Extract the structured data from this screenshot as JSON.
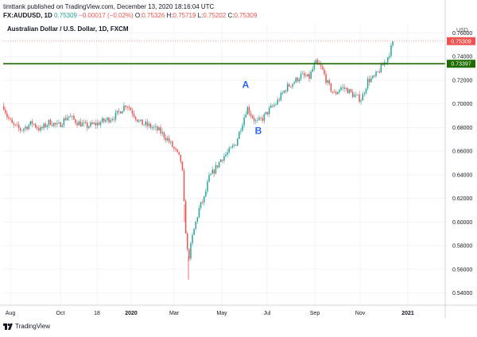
{
  "header": {
    "publisher": "timttank published on TradingView.com, December 13, 2020 18:16:04 UTC",
    "symbol": "FX:AUDUSD, 1D",
    "last": "0.75309",
    "change": "−0.00017 (−0.02%)",
    "o_label": "O:",
    "o_value": "0.75326",
    "h_label": "H:",
    "h_value": "0.75719",
    "l_label": "L:",
    "l_value": "0.75202",
    "c_label": "C:",
    "c_value": "0.75309"
  },
  "footer": {
    "brand": "TradingView",
    "brand_icon": "tradingview-logo-icon"
  },
  "chart_data": {
    "type": "candlestick",
    "title": "Australian Dollar / U.S. Dollar, 1D, FXCM",
    "y_unit": "USD",
    "ylim": [
      0.53,
      0.77
    ],
    "y_ticks": [
      "0.76000",
      "0.74000",
      "0.72000",
      "0.70000",
      "0.68000",
      "0.66000",
      "0.64000",
      "0.62000",
      "0.60000",
      "0.58000",
      "0.56000",
      "0.54000"
    ],
    "x_ticks": [
      "Aug",
      "Oct",
      "18",
      "2020",
      "Mar",
      "May",
      "Jul",
      "Sep",
      "Nov",
      "2021"
    ],
    "price_label": {
      "text": "0.75309",
      "value": 0.75309,
      "color": "#ef5350"
    },
    "horizontal_line": {
      "value": 0.73397,
      "label": "0.73397",
      "color": "#1e6b00"
    },
    "annotations": [
      {
        "text": "A",
        "x": "May",
        "value": 0.7135,
        "color": "#2962ff"
      },
      {
        "text": "B",
        "x": "May",
        "value": 0.6745,
        "color": "#2962ff"
      }
    ],
    "up_color": "#26a69a",
    "down_color": "#ef5350",
    "path": [
      [
        0,
        0.706
      ],
      [
        8,
        0.69
      ],
      [
        15,
        0.682
      ],
      [
        26,
        0.678
      ],
      [
        40,
        0.684
      ],
      [
        50,
        0.678
      ],
      [
        62,
        0.685
      ],
      [
        72,
        0.681
      ],
      [
        85,
        0.69
      ],
      [
        95,
        0.685
      ],
      [
        108,
        0.681
      ],
      [
        120,
        0.683
      ],
      [
        132,
        0.686
      ],
      [
        145,
        0.69
      ],
      [
        158,
        0.7
      ],
      [
        166,
        0.693
      ],
      [
        175,
        0.684
      ],
      [
        188,
        0.681
      ],
      [
        200,
        0.677
      ],
      [
        210,
        0.67
      ],
      [
        220,
        0.66
      ],
      [
        228,
        0.65
      ],
      [
        232,
        0.6
      ],
      [
        236,
        0.567
      ],
      [
        242,
        0.59
      ],
      [
        250,
        0.612
      ],
      [
        256,
        0.62
      ],
      [
        262,
        0.637
      ],
      [
        270,
        0.645
      ],
      [
        278,
        0.654
      ],
      [
        288,
        0.66
      ],
      [
        296,
        0.667
      ],
      [
        304,
        0.684
      ],
      [
        310,
        0.697
      ],
      [
        316,
        0.69
      ],
      [
        322,
        0.684
      ],
      [
        330,
        0.688
      ],
      [
        338,
        0.695
      ],
      [
        346,
        0.7
      ],
      [
        352,
        0.706
      ],
      [
        360,
        0.714
      ],
      [
        368,
        0.718
      ],
      [
        378,
        0.724
      ],
      [
        388,
        0.722
      ],
      [
        396,
        0.735
      ],
      [
        404,
        0.73
      ],
      [
        412,
        0.716
      ],
      [
        420,
        0.708
      ],
      [
        428,
        0.714
      ],
      [
        436,
        0.712
      ],
      [
        446,
        0.706
      ],
      [
        454,
        0.704
      ],
      [
        462,
        0.72
      ],
      [
        470,
        0.722
      ],
      [
        478,
        0.73
      ],
      [
        486,
        0.738
      ],
      [
        494,
        0.752
      ]
    ],
    "spikes": [
      {
        "x": 237,
        "low": 0.551
      },
      {
        "x": 232,
        "high": 0.615
      }
    ]
  }
}
